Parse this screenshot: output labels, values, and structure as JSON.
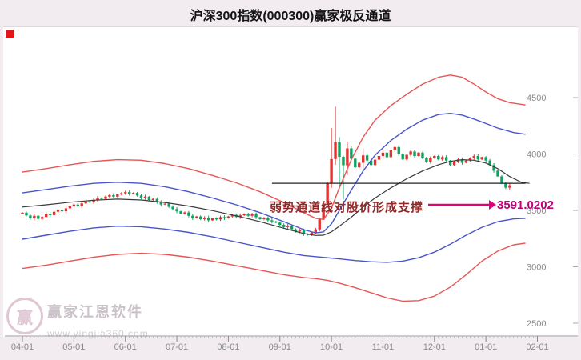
{
  "meta": {
    "title": "沪深300指数(000300)赢家极反通道"
  },
  "colors": {
    "background": "#f2ebf0",
    "plot_background": "#ffffff",
    "candle_up": "#e03232",
    "candle_down": "#0ca361",
    "channel_red": "#e85555",
    "channel_blue": "#4a55cc",
    "channel_middle": "#3a3a3a",
    "support_line": "#222222",
    "arrow": "#e5007d",
    "annotation_text": "#8e2a2a",
    "value_text": "#c2007c",
    "axis_text": "#8a8a8a",
    "corner_marker": "#e31515"
  },
  "annotation": {
    "text": "弱势通道线对股价形成支撑",
    "value_label": "3591.0202"
  },
  "watermark": {
    "brand": "赢家江恩软件",
    "url": "www.yingjia360.com",
    "logo_char": "赢"
  },
  "chart_data": {
    "type": "candlestick",
    "title": "沪深300指数(000300)赢家极反通道",
    "legend_position": "none",
    "grid": false,
    "last_value": 3591.0202,
    "y_axis": {
      "tick_values": [
        4500,
        4000,
        3500,
        3000,
        2500
      ],
      "tick_labels": [
        "4500",
        "4000",
        "3500",
        "3000",
        "2500"
      ],
      "range": [
        2500,
        4500
      ]
    },
    "x_axis": {
      "tick_labels": [
        "04-01",
        "05-01",
        "06-01",
        "07-01",
        "08-01",
        "09-01",
        "10-01",
        "11-01",
        "12-01",
        "01-01",
        "02-01"
      ],
      "tick_indices": [
        0,
        13,
        26,
        39,
        52,
        65,
        78,
        91,
        104,
        117,
        130
      ]
    },
    "candles": {
      "closes": [
        3480,
        3455,
        3430,
        3452,
        3425,
        3442,
        3468,
        3458,
        3488,
        3505,
        3492,
        3518,
        3538,
        3552,
        3540,
        3562,
        3580,
        3572,
        3594,
        3610,
        3602,
        3622,
        3635,
        3622,
        3642,
        3652,
        3662,
        3648,
        3655,
        3632,
        3612,
        3622,
        3592,
        3602,
        3572,
        3552,
        3560,
        3532,
        3512,
        3492,
        3472,
        3482,
        3452,
        3432,
        3446,
        3422,
        3436,
        3412,
        3430,
        3420,
        3440,
        3432,
        3446,
        3460,
        3442,
        3456,
        3470,
        3452,
        3464,
        3440,
        3422,
        3432,
        3412,
        3402,
        3392,
        3372,
        3352,
        3362,
        3332,
        3312,
        3322,
        3292,
        3282,
        3302,
        3332,
        3420,
        3560,
        3745,
        3955,
        4105,
        3975,
        3900,
        4050,
        3958,
        3882,
        3922,
        3988,
        3942,
        3902,
        3950,
        3982,
        4012,
        3972,
        4032,
        4062,
        4002,
        3952,
        3992,
        4022,
        3982,
        4012,
        3962,
        3932,
        3962,
        3982,
        3952,
        3972,
        3942,
        3902,
        3932,
        3952,
        3922,
        3942,
        3962,
        3982,
        3952,
        3972,
        3942,
        3902,
        3852,
        3802,
        3742,
        3702,
        3722
      ],
      "wick_overrides": {
        "78": [
          4230,
          3700
        ],
        "79": [
          4420,
          3905
        ],
        "80": [
          4150,
          3690
        ],
        "81": [
          3985,
          3595
        ],
        "82": [
          4110,
          3815
        ],
        "86": [
          4050,
          3845
        ]
      }
    },
    "channel_lines": {
      "red_upper": [
        [
          0,
          3840
        ],
        [
          6,
          3870
        ],
        [
          12,
          3905
        ],
        [
          18,
          3935
        ],
        [
          24,
          3950
        ],
        [
          30,
          3945
        ],
        [
          36,
          3915
        ],
        [
          42,
          3870
        ],
        [
          48,
          3810
        ],
        [
          54,
          3745
        ],
        [
          60,
          3665
        ],
        [
          66,
          3570
        ],
        [
          71,
          3480
        ],
        [
          74,
          3430
        ],
        [
          76,
          3420
        ],
        [
          78,
          3520
        ],
        [
          80,
          3700
        ],
        [
          83,
          3950
        ],
        [
          86,
          4150
        ],
        [
          89,
          4300
        ],
        [
          93,
          4430
        ],
        [
          97,
          4530
        ],
        [
          101,
          4620
        ],
        [
          105,
          4680
        ],
        [
          108,
          4700
        ],
        [
          111,
          4680
        ],
        [
          114,
          4620
        ],
        [
          117,
          4550
        ],
        [
          120,
          4490
        ],
        [
          123,
          4455
        ],
        [
          127,
          4435
        ]
      ],
      "blue_upper": [
        [
          0,
          3655
        ],
        [
          6,
          3685
        ],
        [
          12,
          3715
        ],
        [
          18,
          3740
        ],
        [
          24,
          3750
        ],
        [
          30,
          3740
        ],
        [
          36,
          3710
        ],
        [
          42,
          3665
        ],
        [
          48,
          3610
        ],
        [
          54,
          3550
        ],
        [
          60,
          3480
        ],
        [
          66,
          3400
        ],
        [
          71,
          3330
        ],
        [
          74,
          3300
        ],
        [
          76,
          3310
        ],
        [
          78,
          3380
        ],
        [
          80,
          3500
        ],
        [
          83,
          3680
        ],
        [
          86,
          3850
        ],
        [
          89,
          3990
        ],
        [
          93,
          4120
        ],
        [
          97,
          4220
        ],
        [
          101,
          4300
        ],
        [
          105,
          4350
        ],
        [
          108,
          4360
        ],
        [
          111,
          4345
        ],
        [
          114,
          4310
        ],
        [
          117,
          4270
        ],
        [
          120,
          4230
        ],
        [
          124,
          4190
        ],
        [
          127,
          4175
        ]
      ],
      "middle": [
        [
          0,
          3530
        ],
        [
          6,
          3550
        ],
        [
          12,
          3572
        ],
        [
          18,
          3590
        ],
        [
          24,
          3600
        ],
        [
          30,
          3592
        ],
        [
          36,
          3570
        ],
        [
          42,
          3538
        ],
        [
          48,
          3498
        ],
        [
          54,
          3452
        ],
        [
          60,
          3400
        ],
        [
          66,
          3342
        ],
        [
          71,
          3295
        ],
        [
          74,
          3278
        ],
        [
          76,
          3280
        ],
        [
          78,
          3310
        ],
        [
          80,
          3360
        ],
        [
          83,
          3440
        ],
        [
          86,
          3530
        ],
        [
          89,
          3610
        ],
        [
          93,
          3700
        ],
        [
          97,
          3780
        ],
        [
          101,
          3850
        ],
        [
          105,
          3905
        ],
        [
          108,
          3935
        ],
        [
          111,
          3950
        ],
        [
          114,
          3945
        ],
        [
          117,
          3920
        ],
        [
          120,
          3870
        ],
        [
          123,
          3800
        ],
        [
          126,
          3748
        ],
        [
          128,
          3740
        ]
      ],
      "blue_lower": [
        [
          0,
          3245
        ],
        [
          6,
          3280
        ],
        [
          12,
          3315
        ],
        [
          18,
          3345
        ],
        [
          24,
          3360
        ],
        [
          30,
          3355
        ],
        [
          36,
          3335
        ],
        [
          42,
          3305
        ],
        [
          48,
          3265
        ],
        [
          54,
          3220
        ],
        [
          60,
          3175
        ],
        [
          66,
          3130
        ],
        [
          71,
          3100
        ],
        [
          74,
          3090
        ],
        [
          77,
          3080
        ],
        [
          80,
          3070
        ],
        [
          84,
          3055
        ],
        [
          88,
          3045
        ],
        [
          92,
          3040
        ],
        [
          96,
          3050
        ],
        [
          100,
          3080
        ],
        [
          104,
          3130
        ],
        [
          108,
          3200
        ],
        [
          112,
          3280
        ],
        [
          116,
          3350
        ],
        [
          120,
          3400
        ],
        [
          124,
          3425
        ],
        [
          127,
          3430
        ]
      ],
      "red_lower": [
        [
          0,
          2985
        ],
        [
          6,
          3015
        ],
        [
          12,
          3050
        ],
        [
          18,
          3085
        ],
        [
          24,
          3110
        ],
        [
          30,
          3120
        ],
        [
          36,
          3110
        ],
        [
          42,
          3085
        ],
        [
          48,
          3050
        ],
        [
          54,
          3010
        ],
        [
          60,
          2970
        ],
        [
          66,
          2930
        ],
        [
          71,
          2905
        ],
        [
          74,
          2895
        ],
        [
          77,
          2880
        ],
        [
          80,
          2855
        ],
        [
          84,
          2815
        ],
        [
          88,
          2770
        ],
        [
          92,
          2725
        ],
        [
          96,
          2695
        ],
        [
          100,
          2700
        ],
        [
          104,
          2740
        ],
        [
          108,
          2820
        ],
        [
          112,
          2930
        ],
        [
          116,
          3050
        ],
        [
          120,
          3140
        ],
        [
          124,
          3195
        ],
        [
          127,
          3210
        ]
      ]
    },
    "support_line": {
      "value": 3740,
      "from_index": 63,
      "to_index": 127
    }
  }
}
